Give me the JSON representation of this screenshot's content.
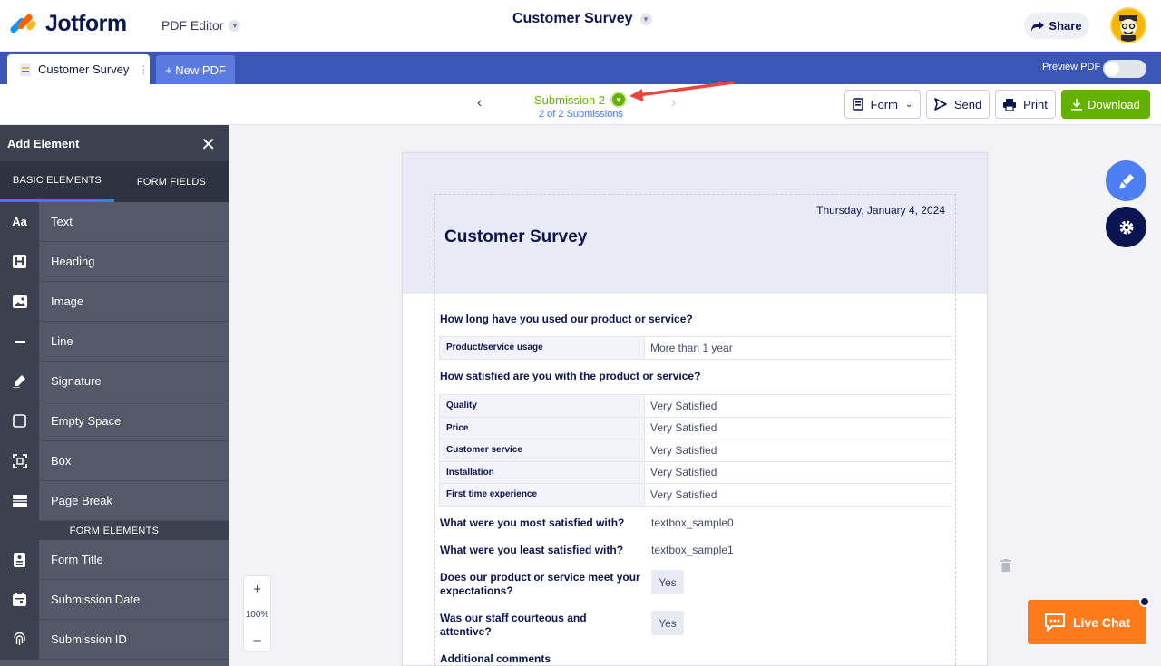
{
  "header": {
    "logo_text": "Jotform",
    "app_name": "PDF Editor",
    "document_title": "Customer Survey",
    "share_label": "Share"
  },
  "tabs": {
    "current_doc": "Customer Survey",
    "new_pdf": "+ New PDF",
    "preview_label": "Preview PDF"
  },
  "toolbar": {
    "submission_label": "Submission 2",
    "submission_count": "2 of 2 Submissions",
    "form_label": "Form",
    "send_label": "Send",
    "print_label": "Print",
    "download_label": "Download"
  },
  "sidebar": {
    "title": "Add Element",
    "tab_basic": "BASIC ELEMENTS",
    "tab_fields": "FORM FIELDS",
    "basic_items": [
      {
        "label": "Text",
        "icon": "text-aa-icon"
      },
      {
        "label": "Heading",
        "icon": "heading-h-icon"
      },
      {
        "label": "Image",
        "icon": "image-icon"
      },
      {
        "label": "Line",
        "icon": "line-icon"
      },
      {
        "label": "Signature",
        "icon": "signature-pen-icon"
      },
      {
        "label": "Empty Space",
        "icon": "empty-space-icon"
      },
      {
        "label": "Box",
        "icon": "box-icon"
      },
      {
        "label": "Page Break",
        "icon": "page-break-icon"
      }
    ],
    "section_form": "FORM ELEMENTS",
    "form_items": [
      {
        "label": "Form Title",
        "icon": "form-title-icon"
      },
      {
        "label": "Submission Date",
        "icon": "calendar-icon"
      },
      {
        "label": "Submission ID",
        "icon": "fingerprint-icon"
      }
    ]
  },
  "zoom": {
    "plus": "+",
    "level": "100%",
    "minus": "–"
  },
  "document": {
    "date": "Thursday, January 4, 2024",
    "title": "Customer Survey",
    "q1": "How long have you used our product or service?",
    "q1_rows": [
      {
        "k": "Product/service usage",
        "v": "More than 1 year"
      }
    ],
    "q2": "How satisfied are you with the product or service?",
    "q2_rows": [
      {
        "k": "Quality",
        "v": "Very Satisfied"
      },
      {
        "k": "Price",
        "v": "Very Satisfied"
      },
      {
        "k": "Customer service",
        "v": "Very Satisfied"
      },
      {
        "k": "Installation",
        "v": "Very Satisfied"
      },
      {
        "k": "First time experience",
        "v": "Very Satisfied"
      }
    ],
    "q3": "What were you most satisfied with?",
    "a3": "textbox_sample0",
    "q4": "What were you least satisfied with?",
    "a4": "textbox_sample1",
    "q5": "Does our product or service meet your expectations?",
    "a5": "Yes",
    "q6": "Was our staff courteous and attentive?",
    "a6": "Yes",
    "q7": "Additional comments"
  },
  "live_chat": "Live Chat",
  "colors": {
    "brand_navy": "#0a1551",
    "tab_blue": "#3a57b7",
    "accent_green": "#64b200",
    "sidebar_gray": "#545869",
    "live_chat_orange": "#ff7b1c",
    "annotation_red": "#e8453c"
  }
}
